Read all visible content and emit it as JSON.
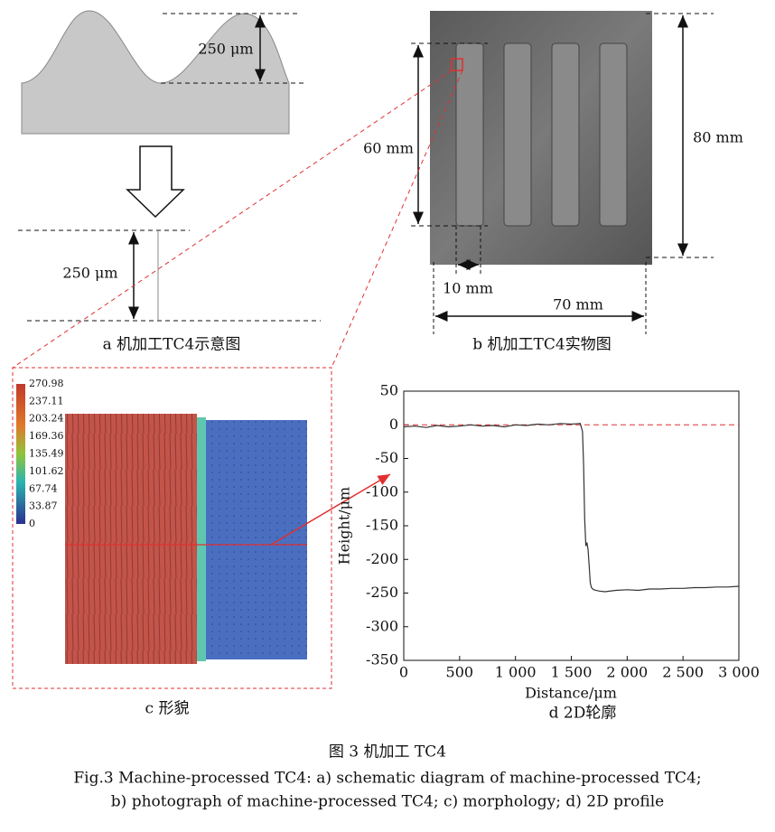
{
  "panel_a": {
    "top_dimension": "250 μm",
    "bottom_dimension": "250 μm",
    "caption": "a  机加工TC4示意图"
  },
  "panel_b": {
    "height_inner": "60 mm",
    "height_outer": "80 mm",
    "slot_width": "10 mm",
    "width": "70 mm",
    "caption": "b  机加工TC4实物图"
  },
  "panel_c": {
    "colorbar_ticks": [
      270.98,
      237.11,
      203.24,
      169.36,
      135.49,
      101.62,
      67.74,
      33.87,
      0
    ],
    "caption": "c  形貌"
  },
  "chart_data": {
    "type": "line",
    "xlabel": "Distance/μm",
    "ylabel": "Height/μm",
    "caption": "d  2D轮廓",
    "xlim": [
      0,
      3000
    ],
    "ylim": [
      -350,
      50
    ],
    "xticks": [
      0,
      500,
      {
        "value": 1000,
        "label": "1 000"
      },
      {
        "value": 1500,
        "label": "1 500"
      },
      {
        "value": 2000,
        "label": "2 000"
      },
      {
        "value": 2500,
        "label": "2 500"
      },
      {
        "value": 3000,
        "label": "3 000"
      }
    ],
    "yticks": [
      50,
      0,
      -50,
      -100,
      -150,
      -200,
      -250,
      -300,
      -350
    ],
    "reference_line": {
      "value": 0,
      "color": "#e03030"
    },
    "x": [
      0,
      100,
      200,
      300,
      400,
      500,
      600,
      700,
      800,
      900,
      1000,
      1100,
      1200,
      1300,
      1400,
      1500,
      1580,
      1600,
      1610,
      1620,
      1630,
      1640,
      1650,
      1660,
      1670,
      1680,
      1700,
      1750,
      1800,
      1900,
      2000,
      2100,
      2200,
      2300,
      2400,
      2500,
      2600,
      2700,
      2800,
      2900,
      3000
    ],
    "series": [
      {
        "color": "#333333",
        "values": [
          -3,
          -2,
          -4,
          -1,
          -3,
          -2,
          0,
          -2,
          -1,
          -3,
          0,
          -1,
          1,
          0,
          2,
          1,
          2,
          -10,
          -60,
          -140,
          -180,
          -175,
          -185,
          -210,
          -235,
          -242,
          -245,
          -247,
          -248,
          -246,
          -245,
          -246,
          -244,
          -244,
          -243,
          -243,
          -242,
          -242,
          -241,
          -241,
          -240
        ]
      }
    ]
  },
  "figure_caption": {
    "chinese": "图 3    机加工 TC4",
    "english_line_1": "Fig.3 Machine-processed TC4: a) schematic diagram of machine-processed TC4;",
    "english_line_2": "b) photograph of machine-processed TC4; c) morphology; d) 2D profile"
  }
}
